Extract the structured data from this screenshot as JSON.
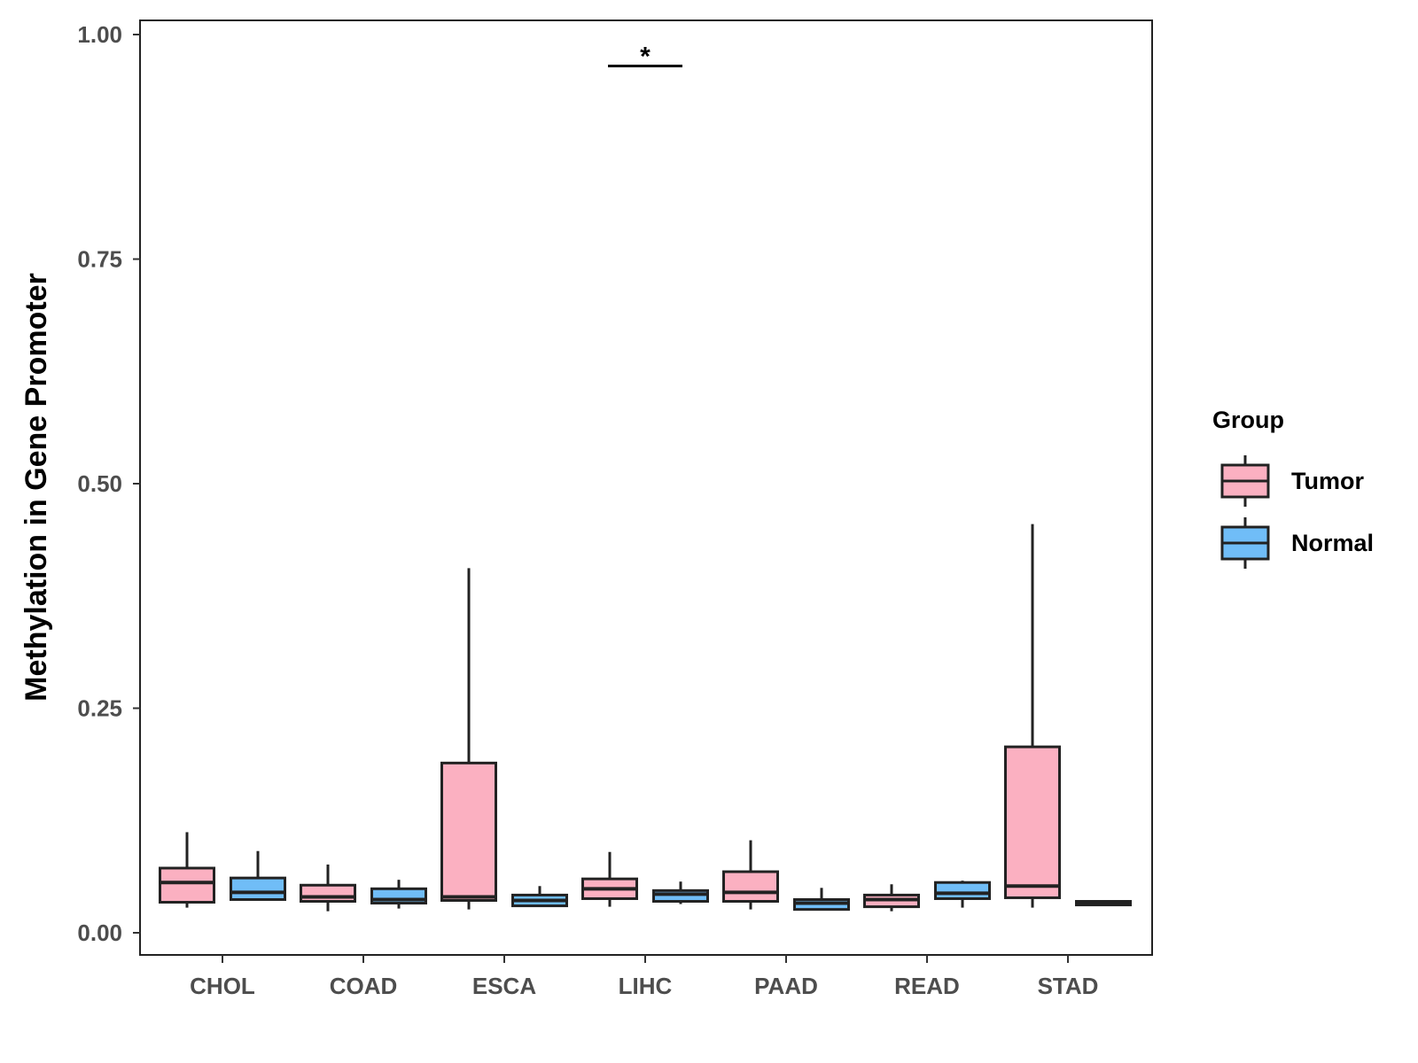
{
  "chart_data": {
    "type": "boxplot",
    "ylabel": "Methylation in Gene Promoter",
    "xlabel": "",
    "ylim": [
      -0.02,
      1.02
    ],
    "yticks": [
      0.0,
      0.25,
      0.5,
      0.75,
      1.0
    ],
    "ytick_labels": [
      "0.00",
      "0.25",
      "0.50",
      "0.75",
      "1.00"
    ],
    "categories": [
      "CHOL",
      "COAD",
      "ESCA",
      "LIHC",
      "PAAD",
      "READ",
      "STAD"
    ],
    "legend": {
      "title": "Group",
      "position": "right",
      "entries": [
        {
          "name": "Tumor",
          "color": "#fbb0c1"
        },
        {
          "name": "Normal",
          "color": "#70bdf7"
        }
      ]
    },
    "series": [
      {
        "name": "Tumor",
        "color": "#fbb0c1",
        "boxes": [
          {
            "category": "CHOL",
            "lower_whisker": 0.028,
            "q1": 0.034,
            "median": 0.056,
            "q3": 0.072,
            "upper_whisker": 0.112
          },
          {
            "category": "COAD",
            "lower_whisker": 0.024,
            "q1": 0.035,
            "median": 0.04,
            "q3": 0.053,
            "upper_whisker": 0.076
          },
          {
            "category": "ESCA",
            "lower_whisker": 0.026,
            "q1": 0.036,
            "median": 0.04,
            "q3": 0.189,
            "upper_whisker": 0.406
          },
          {
            "category": "LIHC",
            "lower_whisker": 0.029,
            "q1": 0.038,
            "median": 0.049,
            "q3": 0.06,
            "upper_whisker": 0.09
          },
          {
            "category": "PAAD",
            "lower_whisker": 0.026,
            "q1": 0.035,
            "median": 0.045,
            "q3": 0.068,
            "upper_whisker": 0.103
          },
          {
            "category": "READ",
            "lower_whisker": 0.024,
            "q1": 0.029,
            "median": 0.037,
            "q3": 0.042,
            "upper_whisker": 0.054
          },
          {
            "category": "STAD",
            "lower_whisker": 0.028,
            "q1": 0.039,
            "median": 0.052,
            "q3": 0.207,
            "upper_whisker": 0.455
          }
        ]
      },
      {
        "name": "Normal",
        "color": "#70bdf7",
        "boxes": [
          {
            "category": "CHOL",
            "lower_whisker": 0.036,
            "q1": 0.037,
            "median": 0.045,
            "q3": 0.061,
            "upper_whisker": 0.091
          },
          {
            "category": "COAD",
            "lower_whisker": 0.027,
            "q1": 0.033,
            "median": 0.037,
            "q3": 0.049,
            "upper_whisker": 0.059
          },
          {
            "category": "ESCA",
            "lower_whisker": 0.029,
            "q1": 0.03,
            "median": 0.036,
            "q3": 0.042,
            "upper_whisker": 0.052
          },
          {
            "category": "LIHC",
            "lower_whisker": 0.032,
            "q1": 0.035,
            "median": 0.043,
            "q3": 0.047,
            "upper_whisker": 0.057
          },
          {
            "category": "PAAD",
            "lower_whisker": 0.025,
            "q1": 0.026,
            "median": 0.033,
            "q3": 0.037,
            "upper_whisker": 0.05
          },
          {
            "category": "READ",
            "lower_whisker": 0.028,
            "q1": 0.038,
            "median": 0.044,
            "q3": 0.056,
            "upper_whisker": 0.058
          },
          {
            "category": "STAD",
            "lower_whisker": 0.031,
            "q1": 0.031,
            "median": 0.033,
            "q3": 0.035,
            "upper_whisker": 0.035
          }
        ]
      }
    ],
    "annotations": [
      {
        "category": "LIHC",
        "text": "*",
        "y": 0.965
      }
    ]
  }
}
